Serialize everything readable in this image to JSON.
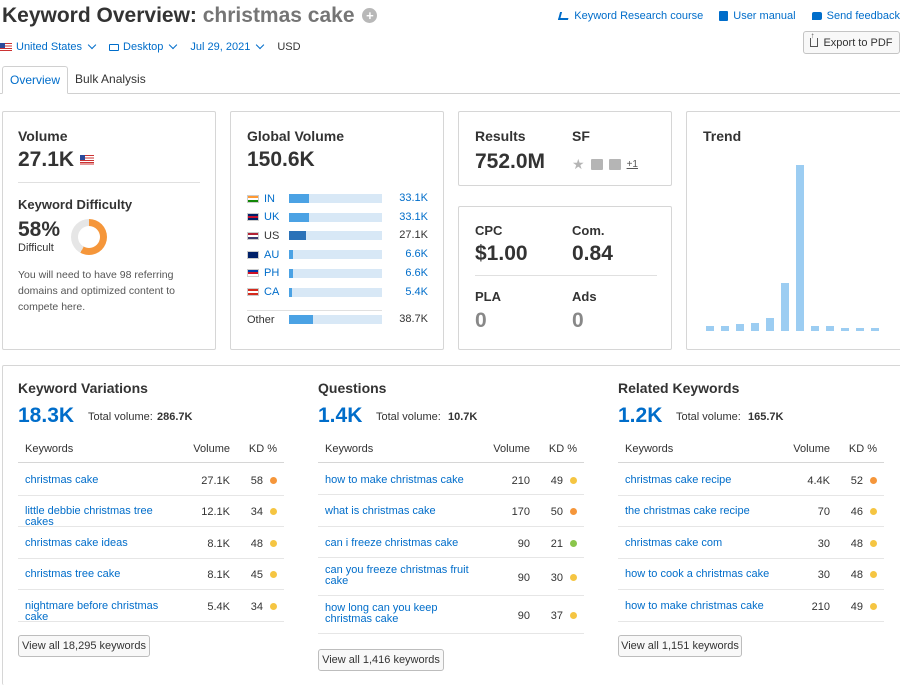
{
  "header": {
    "title_prefix": "Keyword Overview:",
    "keyword": "christmas cake",
    "plus_icon": "plus-circle-icon",
    "links": [
      {
        "label": "Keyword Research course",
        "icon": "course-icon"
      },
      {
        "label": "User manual",
        "icon": "book-icon"
      },
      {
        "label": "Send feedback",
        "icon": "chat-bubble-icon"
      }
    ],
    "export_label": "Export to PDF"
  },
  "filters": {
    "country": "United States",
    "device": "Desktop",
    "date": "Jul 29, 2021",
    "currency": "USD"
  },
  "tabs": [
    {
      "label": "Overview",
      "active": true
    },
    {
      "label": "Bulk Analysis",
      "active": false
    }
  ],
  "volume": {
    "label": "Volume",
    "value": "27.1K",
    "kd_label": "Keyword Difficulty",
    "kd_value": "58%",
    "kd_fraction": 0.58,
    "kd_text": "Difficult",
    "kd_desc_1": "You will need to have 98 referring",
    "kd_desc_2": "domains and optimized content to",
    "kd_desc_3": "compete here."
  },
  "global": {
    "label": "Global Volume",
    "value": "150.6K",
    "countries": [
      {
        "code": "IN",
        "value": "33.1K",
        "share": 0.22,
        "link": true,
        "colors": [
          "#ff9933",
          "#ffffff",
          "#138808"
        ]
      },
      {
        "code": "UK",
        "value": "33.1K",
        "share": 0.22,
        "link": true,
        "colors": [
          "#012169",
          "#c8102e",
          "#012169"
        ]
      },
      {
        "code": "US",
        "value": "27.1K",
        "share": 0.18,
        "link": false,
        "colors": [
          "#b22234",
          "#ffffff",
          "#3c3b6e"
        ]
      },
      {
        "code": "AU",
        "value": "6.6K",
        "share": 0.044,
        "link": true,
        "colors": [
          "#012169",
          "#012169",
          "#012169"
        ]
      },
      {
        "code": "PH",
        "value": "6.6K",
        "share": 0.044,
        "link": true,
        "colors": [
          "#0038a8",
          "#ce1126",
          "#ffffff"
        ]
      },
      {
        "code": "CA",
        "value": "5.4K",
        "share": 0.036,
        "link": true,
        "colors": [
          "#d52b1e",
          "#ffffff",
          "#d52b1e"
        ]
      }
    ],
    "other_label": "Other",
    "other_value": "38.7K",
    "other_share": 0.26
  },
  "results": {
    "label": "Results",
    "value": "752.0M",
    "sf_label": "SF",
    "sf_icons": [
      "star-icon",
      "image-icon",
      "question-icon"
    ],
    "sf_more": "+1"
  },
  "cpc": {
    "cpc_label": "CPC",
    "cpc_value": "$1.00",
    "com_label": "Com.",
    "com_value": "0.84",
    "pla_label": "PLA",
    "pla_value": "0",
    "ads_label": "Ads",
    "ads_value": "0"
  },
  "trend": {
    "label": "Trend",
    "values": [
      0.03,
      0.03,
      0.04,
      0.05,
      0.08,
      0.29,
      1.0,
      0.03,
      0.03,
      0.02,
      0.02,
      0.02
    ]
  },
  "variations": {
    "title": "Keyword Variations",
    "count": "18.3K",
    "total_label": "Total volume:",
    "total_value": "286.7K",
    "col_kw": "Keywords",
    "col_vol": "Volume",
    "col_kd": "KD %",
    "rows": [
      {
        "kw": "christmas cake",
        "vol": "27.1K",
        "kd": "58",
        "color": "#f5963a"
      },
      {
        "kw": "little debbie christmas tree cakes",
        "vol": "12.1K",
        "kd": "34",
        "color": "#f5c542"
      },
      {
        "kw": "christmas cake ideas",
        "vol": "8.1K",
        "kd": "48",
        "color": "#f5c542"
      },
      {
        "kw": "christmas tree cake",
        "vol": "8.1K",
        "kd": "45",
        "color": "#f5c542"
      },
      {
        "kw": "nightmare before christmas cake",
        "vol": "5.4K",
        "kd": "34",
        "color": "#f5c542"
      }
    ],
    "button": "View all 18,295 keywords"
  },
  "questions": {
    "title": "Questions",
    "count": "1.4K",
    "total_label": "Total volume:",
    "total_value": "10.7K",
    "col_kw": "Keywords",
    "col_vol": "Volume",
    "col_kd": "KD %",
    "rows": [
      {
        "kw": "how to make christmas cake",
        "vol": "210",
        "kd": "49",
        "color": "#f5c542"
      },
      {
        "kw": "what is christmas cake",
        "vol": "170",
        "kd": "50",
        "color": "#f5963a"
      },
      {
        "kw": "can i freeze christmas cake",
        "vol": "90",
        "kd": "21",
        "color": "#8ac54b"
      },
      {
        "kw": "can you freeze christmas fruit cake",
        "vol": "90",
        "kd": "30",
        "color": "#f5c542"
      },
      {
        "kw": "how long can you keep christmas cake",
        "vol": "90",
        "kd": "37",
        "color": "#f5c542"
      }
    ],
    "button": "View all 1,416 keywords"
  },
  "related": {
    "title": "Related Keywords",
    "count": "1.2K",
    "total_label": "Total volume:",
    "total_value": "165.7K",
    "col_kw": "Keywords",
    "col_vol": "Volume",
    "col_kd": "KD %",
    "rows": [
      {
        "kw": "christmas cake recipe",
        "vol": "4.4K",
        "kd": "52",
        "color": "#f5963a"
      },
      {
        "kw": "the christmas cake recipe",
        "vol": "70",
        "kd": "46",
        "color": "#f5c542"
      },
      {
        "kw": "christmas cake com",
        "vol": "30",
        "kd": "48",
        "color": "#f5c542"
      },
      {
        "kw": "how to cook a christmas cake",
        "vol": "30",
        "kd": "48",
        "color": "#f5c542"
      },
      {
        "kw": "how to make christmas cake",
        "vol": "210",
        "kd": "49",
        "color": "#f5c542"
      }
    ],
    "button": "View all 1,151 keywords"
  }
}
